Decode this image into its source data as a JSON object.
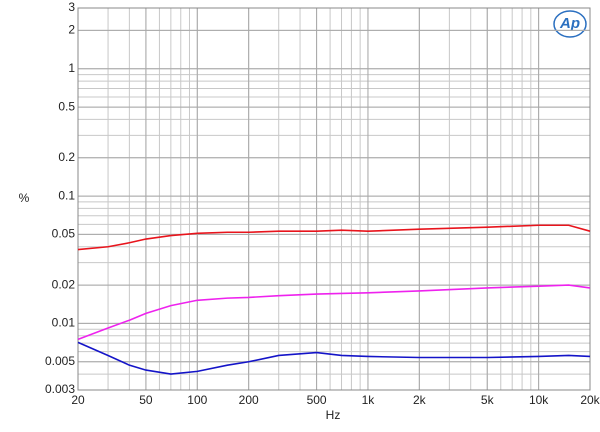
{
  "chart_data": {
    "type": "line",
    "x_label": "Hz",
    "y_label": "%",
    "logo": "Ap",
    "x": [
      20,
      30,
      40,
      50,
      70,
      100,
      150,
      200,
      300,
      500,
      700,
      1000,
      2000,
      5000,
      10000,
      15000,
      20000
    ],
    "series": [
      {
        "color": "#e8141c",
        "values": [
          0.038,
          0.04,
          0.043,
          0.046,
          0.049,
          0.051,
          0.052,
          0.052,
          0.053,
          0.053,
          0.054,
          0.053,
          0.055,
          0.057,
          0.059,
          0.059,
          0.053
        ]
      },
      {
        "color": "#ee22ee",
        "values": [
          0.0075,
          0.0092,
          0.0106,
          0.012,
          0.0138,
          0.0152,
          0.0158,
          0.016,
          0.0165,
          0.017,
          0.0172,
          0.0174,
          0.018,
          0.019,
          0.0196,
          0.02,
          0.019
        ]
      },
      {
        "color": "#1414c8",
        "values": [
          0.0071,
          0.0056,
          0.0047,
          0.0043,
          0.004,
          0.0042,
          0.0047,
          0.005,
          0.0056,
          0.0059,
          0.0056,
          0.0055,
          0.0054,
          0.0054,
          0.0055,
          0.0056,
          0.0055
        ]
      }
    ],
    "xlim": [
      20,
      20000
    ],
    "ylim": [
      0.003,
      3
    ],
    "xlog": true,
    "ylog": true,
    "grid": true,
    "xticks": [
      20,
      50,
      100,
      200,
      500,
      {
        "value": 1000,
        "label": "1k"
      },
      {
        "value": 2000,
        "label": "2k"
      },
      {
        "value": 5000,
        "label": "5k"
      },
      {
        "value": 10000,
        "label": "10k"
      },
      {
        "value": 20000,
        "label": "20k"
      }
    ],
    "yticks": [
      0.003,
      0.005,
      0.01,
      0.02,
      0.05,
      0.1,
      0.2,
      0.5,
      1,
      2,
      3
    ]
  }
}
